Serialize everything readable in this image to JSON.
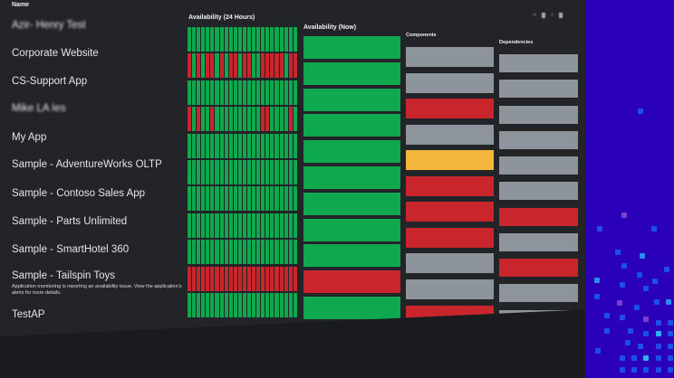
{
  "colors": {
    "green": "#10a84e",
    "red": "#c8262c",
    "gray": "#8e949c",
    "yellow": "#f2b63a",
    "blue_bg": "#2a00b8"
  },
  "headers": {
    "name": "Name",
    "availability_24h": "Availability (24 Hours)",
    "availability_now": "Availability (Now)",
    "components": "Components",
    "dependencies": "Dependencies"
  },
  "rows": [
    {
      "name": "Azir- Henry Test",
      "blurred": true,
      "history": "gggggggggggggggggggggggg",
      "now": "green",
      "components": "gray",
      "dependencies": "gray"
    },
    {
      "name": "Corporate Website",
      "history": "rgrgrrgrgrrgrrggrrrrrgrr",
      "now": "green",
      "components": "gray",
      "dependencies": "gray"
    },
    {
      "name": "CS-Support App",
      "history": "gggggggggggggggggggggggg",
      "now": "green",
      "components": "red",
      "dependencies": "gray"
    },
    {
      "name": "Mike LA Ies",
      "blurred": true,
      "history": "rgrggrggggggggggrrggggrg",
      "now": "green",
      "components": "gray",
      "dependencies": "gray"
    },
    {
      "name": "My App",
      "history": "gggggggggggggggggggggggg",
      "now": "green",
      "components": "yellow",
      "dependencies": "gray"
    },
    {
      "name": "Sample - AdventureWorks OLTP",
      "history": "gggggggggggggggggggggggg",
      "now": "green",
      "components": "red",
      "dependencies": "gray"
    },
    {
      "name": "Sample - Contoso Sales App",
      "history": "gggggggggggggggggggggggg",
      "now": "green",
      "components": "red",
      "dependencies": "red"
    },
    {
      "name": "Sample - Parts Unlimited",
      "history": "gggggggggggggggggggggggg",
      "now": "green",
      "components": "red",
      "dependencies": "gray"
    },
    {
      "name": "Sample - SmartHotel 360",
      "history": "gggggggggggggggggggggggg",
      "now": "green",
      "components": "gray",
      "dependencies": "red"
    },
    {
      "name": "Sample - Tailspin Toys",
      "message": "Application monitoring is reporting an availability issue. View the application's alerts for more details.",
      "history": "rrrrrrrrrrrrrrrrrrrrrrrr",
      "now": "red",
      "components": "gray",
      "dependencies": "gray"
    },
    {
      "name": "TestAP",
      "history": "gggggggggggggggggggggggg",
      "now": "green",
      "components": "red",
      "dependencies": "gray"
    }
  ]
}
